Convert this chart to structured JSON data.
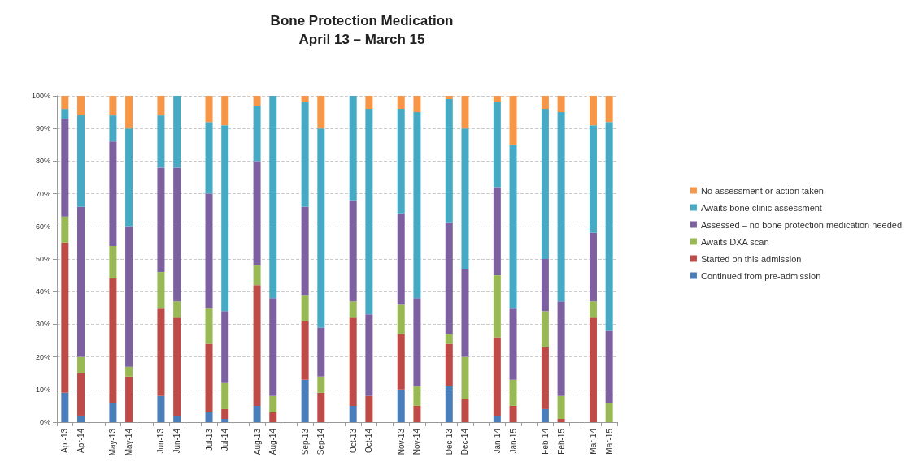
{
  "chart_data": {
    "type": "bar",
    "stacked": true,
    "title": "Bone Protection Medication",
    "subtitle": "April 13 – March 15",
    "categories": [
      "Apr-13",
      "Apr-14",
      null,
      "May-13",
      "May-14",
      null,
      "Jun-13",
      "Jun-14",
      null,
      "Jul-13",
      "Jul-14",
      null,
      "Aug-13",
      "Aug-14",
      null,
      "Sep-13",
      "Sep-14",
      null,
      "Oct-13",
      "Oct-14",
      null,
      "Nov-13",
      "Nov-14",
      null,
      "Dec-13",
      "Dec-14",
      null,
      "Jan-14",
      "Jan-15",
      null,
      "Feb-14",
      "Feb-15",
      null,
      "Mar-14",
      "Mar-15"
    ],
    "series": [
      {
        "name": "Continued from pre-admission",
        "color": "#4a7ebb",
        "values": [
          9,
          2,
          null,
          6,
          0,
          null,
          8,
          2,
          null,
          3,
          1,
          null,
          5,
          0,
          null,
          13,
          0,
          null,
          5,
          0,
          null,
          10,
          0,
          null,
          11,
          0,
          null,
          2,
          0,
          null,
          4,
          0,
          null,
          0,
          0
        ]
      },
      {
        "name": "Started on this admission",
        "color": "#be4b48",
        "values": [
          46,
          13,
          null,
          38,
          14,
          null,
          27,
          30,
          null,
          21,
          3,
          null,
          37,
          3,
          null,
          18,
          9,
          null,
          27,
          8,
          null,
          17,
          5,
          null,
          13,
          7,
          null,
          24,
          5,
          null,
          19,
          1,
          null,
          32,
          0
        ]
      },
      {
        "name": "Awaits DXA scan",
        "color": "#98b954",
        "values": [
          8,
          5,
          null,
          10,
          3,
          null,
          11,
          5,
          null,
          11,
          8,
          null,
          6,
          5,
          null,
          8,
          5,
          null,
          5,
          0,
          null,
          9,
          6,
          null,
          3,
          13,
          null,
          19,
          8,
          null,
          11,
          7,
          null,
          5,
          6
        ]
      },
      {
        "name": "Assessed – no bone protection medication needed",
        "color": "#7d60a0",
        "values": [
          30,
          46,
          null,
          32,
          43,
          null,
          32,
          41,
          null,
          35,
          22,
          null,
          32,
          30,
          null,
          27,
          15,
          null,
          31,
          25,
          null,
          28,
          27,
          null,
          34,
          27,
          null,
          27,
          22,
          null,
          16,
          29,
          null,
          21,
          22
        ]
      },
      {
        "name": "Awaits bone clinic assessment",
        "color": "#46aac5",
        "values": [
          3,
          28,
          null,
          8,
          30,
          null,
          16,
          22,
          null,
          22,
          57,
          null,
          17,
          62,
          null,
          32,
          61,
          null,
          32,
          63,
          null,
          32,
          57,
          null,
          38,
          43,
          null,
          26,
          50,
          null,
          46,
          58,
          null,
          33,
          64
        ]
      },
      {
        "name": "No assessment or action taken",
        "color": "#f79646",
        "values": [
          4,
          6,
          null,
          6,
          10,
          null,
          6,
          0,
          null,
          8,
          9,
          null,
          3,
          0,
          null,
          2,
          10,
          null,
          0,
          4,
          null,
          4,
          5,
          null,
          1,
          10,
          null,
          2,
          15,
          null,
          4,
          5,
          null,
          9,
          8
        ]
      }
    ],
    "ylim": [
      0,
      100
    ],
    "yticks": [
      {
        "value": 0,
        "label": "0%"
      },
      {
        "value": 10,
        "label": "10%"
      },
      {
        "value": 20,
        "label": "20%"
      },
      {
        "value": 30,
        "label": "30%"
      },
      {
        "value": 40,
        "label": "40%"
      },
      {
        "value": 50,
        "label": "50%"
      },
      {
        "value": 60,
        "label": "60%"
      },
      {
        "value": 70,
        "label": "70%"
      },
      {
        "value": 80,
        "label": "80%"
      },
      {
        "value": 90,
        "label": "90%"
      },
      {
        "value": 100,
        "label": "100%"
      }
    ],
    "grid": "y",
    "legend": "right"
  }
}
